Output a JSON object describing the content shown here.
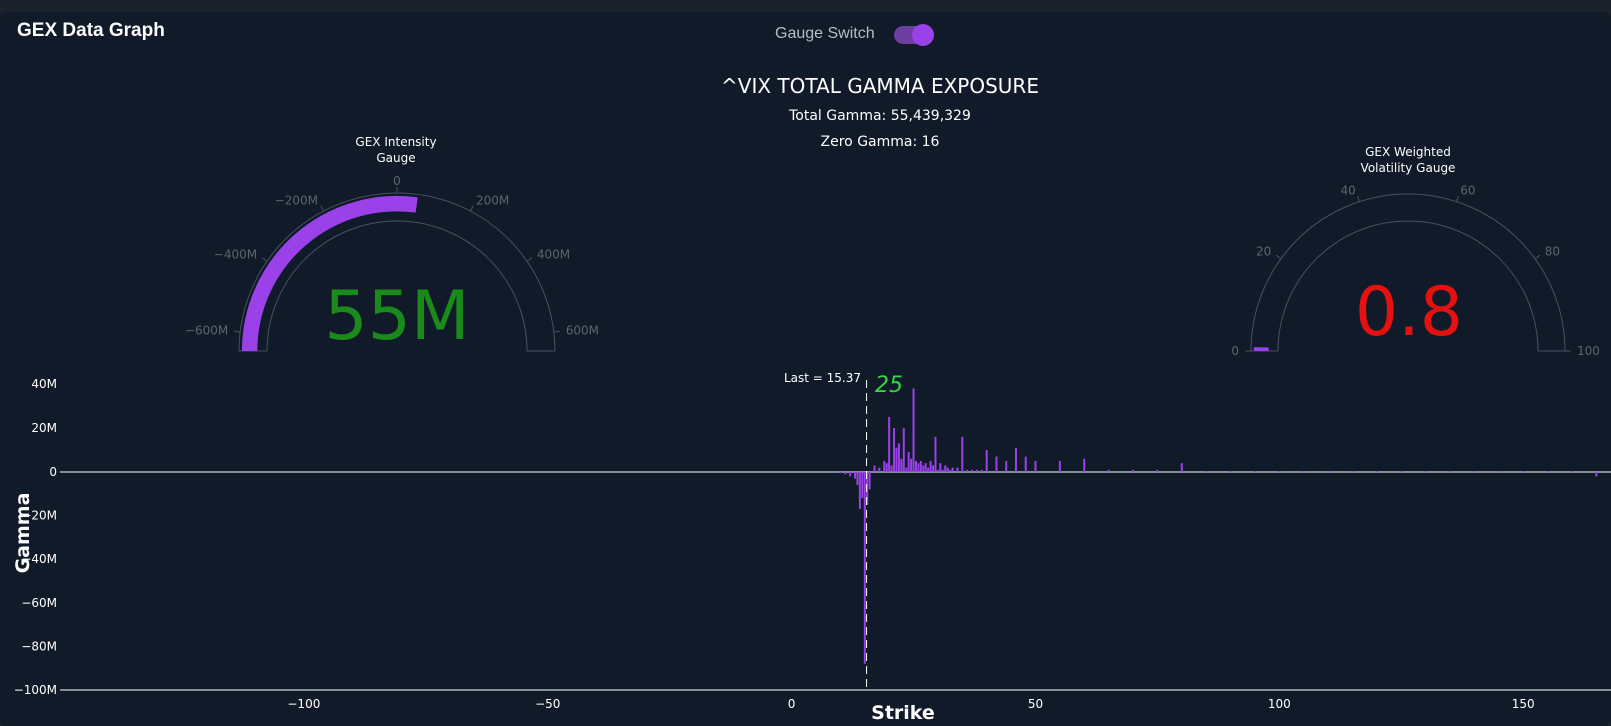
{
  "header": {
    "title": "GEX Data Graph",
    "switch_label": "Gauge Switch",
    "switch_on": true
  },
  "colors": {
    "accent": "#9b41ea",
    "positive_value": "#1a8a1a",
    "negative_value": "#e41111",
    "annotation": "#38d640",
    "background": "#111a29"
  },
  "chart_data": [
    {
      "type": "gauge",
      "title": "GEX Intensity Gauge",
      "title_lines": [
        "GEX Intensity",
        "Gauge"
      ],
      "value": 55439329,
      "value_label": "55M",
      "range": [
        -650000000,
        650000000
      ],
      "tick_values": [
        -600000000,
        -400000000,
        -200000000,
        0,
        200000000,
        400000000,
        600000000
      ],
      "tick_labels": [
        "−600M",
        "−400M",
        "−200M",
        "0",
        "200M",
        "400M",
        "600M"
      ]
    },
    {
      "type": "text",
      "title": "^VIX TOTAL GAMMA EXPOSURE",
      "total_gamma_label": "Total Gamma: 55,439,329",
      "zero_gamma_label": "Zero Gamma: 16"
    },
    {
      "type": "gauge",
      "title": "GEX Weighted Volatility Gauge",
      "title_lines": [
        "GEX Weighted",
        "Volatility Gauge"
      ],
      "value": 0.8,
      "value_label": "0.8",
      "range": [
        0,
        100
      ],
      "tick_values": [
        0,
        20,
        40,
        60,
        80,
        100
      ],
      "tick_labels": [
        "0",
        "20",
        "40",
        "60",
        "80",
        "100"
      ]
    },
    {
      "type": "bar",
      "xlabel": "Strike",
      "ylabel": "Gamma",
      "xlim": [
        -150,
        168
      ],
      "ylim": [
        -100000000,
        42000000
      ],
      "x_ticks": [
        -100,
        -50,
        0,
        50,
        100,
        150
      ],
      "x_tick_labels": [
        "−100",
        "−50",
        "0",
        "50",
        "100",
        "150"
      ],
      "y_ticks": [
        40000000,
        20000000,
        0,
        -20000000,
        -40000000,
        -60000000,
        -80000000,
        -100000000
      ],
      "y_tick_labels": [
        "40M",
        "20M",
        "0",
        "−20M",
        "−40M",
        "−60M",
        "−80M",
        "−100M"
      ],
      "last_price": 15.37,
      "last_label": "Last = 15.37",
      "annotation": "25",
      "x": [
        10,
        11,
        12,
        13,
        13.5,
        14,
        14.5,
        15,
        15.5,
        16,
        17,
        18,
        19,
        19.5,
        20,
        20.5,
        21,
        21.5,
        22,
        22.5,
        23,
        23.5,
        24,
        24.5,
        25,
        25.5,
        26,
        26.5,
        27,
        27.5,
        28,
        28.5,
        29,
        29.5,
        30,
        30.5,
        31,
        31.5,
        32,
        32.5,
        33,
        34,
        35,
        36,
        37,
        38,
        39,
        40,
        42,
        44,
        46,
        48,
        50,
        55,
        60,
        65,
        70,
        75,
        80,
        85,
        90,
        95,
        100,
        105,
        110,
        115,
        120,
        125,
        130,
        135,
        140,
        145,
        150,
        155,
        160,
        165
      ],
      "values": [
        -500000,
        -1000000,
        -2000000,
        -3000000,
        -6000000,
        -17000000,
        -12000000,
        -88000000,
        -15000000,
        -8000000,
        3000000,
        2000000,
        5000000,
        4000000,
        25000000,
        3000000,
        20000000,
        11000000,
        13000000,
        6000000,
        20000000,
        2000000,
        9000000,
        6000000,
        38000000,
        5000000,
        4000000,
        5000000,
        3000000,
        4000000,
        2000000,
        5000000,
        3000000,
        16000000,
        1000000,
        4000000,
        1000000,
        3000000,
        2000000,
        1000000,
        2000000,
        2000000,
        16000000,
        1000000,
        1000000,
        1000000,
        1000000,
        10000000,
        7000000,
        5000000,
        11000000,
        7000000,
        5000000,
        5000000,
        6000000,
        1000000,
        1000000,
        1000000,
        4000000,
        500000,
        500000,
        500000,
        500000,
        500000,
        500000,
        500000,
        500000,
        500000,
        500000,
        500000,
        500000,
        500000,
        500000,
        500000,
        500000,
        -2000000
      ]
    }
  ]
}
